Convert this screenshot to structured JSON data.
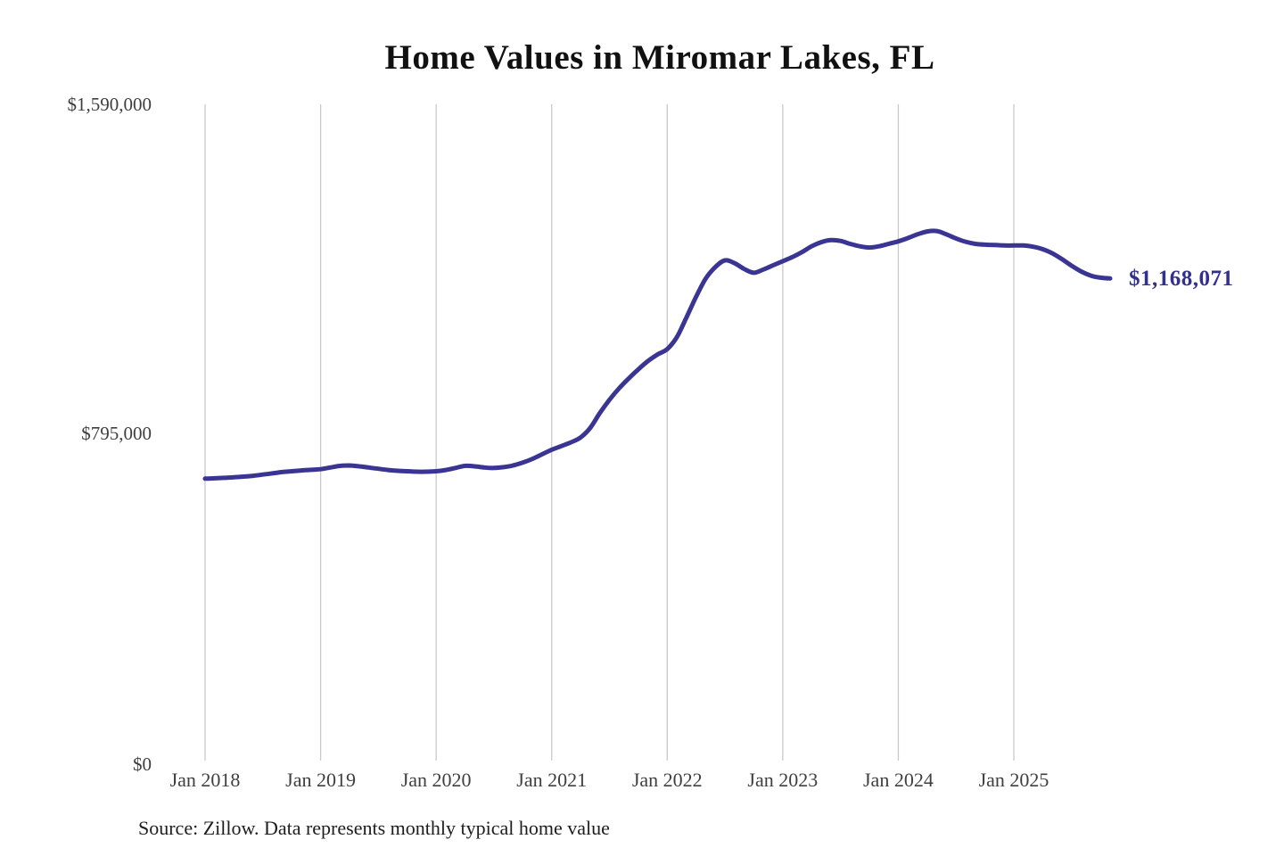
{
  "title": "Home Values in Miromar Lakes, FL",
  "end_label": "$1,168,071",
  "source_note": "Source: Zillow. Data represents monthly typical home value",
  "colors": {
    "line": "#3a3493",
    "end_label": "#33308f",
    "axis_text": "#3f3f3f",
    "gridline": "#c9c9c9",
    "title_text": "#111111",
    "background": "#ffffff"
  },
  "chart_data": {
    "type": "line",
    "title": "Home Values in Miromar Lakes, FL",
    "xlabel": "",
    "ylabel": "",
    "ylim": [
      0,
      1590000
    ],
    "y_tick_labels": [
      "$0",
      "$795,000",
      "$1,590,000"
    ],
    "y_tick_values": [
      0,
      795000,
      1590000
    ],
    "x_tick_labels": [
      "Jan 2018",
      "Jan 2019",
      "Jan 2020",
      "Jan 2021",
      "Jan 2022",
      "Jan 2023",
      "Jan 2024",
      "Jan 2025"
    ],
    "grid": "vertical-only",
    "legend": "none",
    "interval": "monthly",
    "final_value": 1168071,
    "x": [
      "2018-01",
      "2018-02",
      "2018-03",
      "2018-04",
      "2018-05",
      "2018-06",
      "2018-07",
      "2018-08",
      "2018-09",
      "2018-10",
      "2018-11",
      "2018-12",
      "2019-01",
      "2019-02",
      "2019-03",
      "2019-04",
      "2019-05",
      "2019-06",
      "2019-07",
      "2019-08",
      "2019-09",
      "2019-10",
      "2019-11",
      "2019-12",
      "2020-01",
      "2020-02",
      "2020-03",
      "2020-04",
      "2020-05",
      "2020-06",
      "2020-07",
      "2020-08",
      "2020-09",
      "2020-10",
      "2020-11",
      "2020-12",
      "2021-01",
      "2021-02",
      "2021-03",
      "2021-04",
      "2021-05",
      "2021-06",
      "2021-07",
      "2021-08",
      "2021-09",
      "2021-10",
      "2021-11",
      "2021-12",
      "2022-01",
      "2022-02",
      "2022-03",
      "2022-04",
      "2022-05",
      "2022-06",
      "2022-07",
      "2022-08",
      "2022-09",
      "2022-10",
      "2022-11",
      "2022-12",
      "2023-01",
      "2023-02",
      "2023-03",
      "2023-04",
      "2023-05",
      "2023-06",
      "2023-07",
      "2023-08",
      "2023-09",
      "2023-10",
      "2023-11",
      "2023-12",
      "2024-01",
      "2024-02",
      "2024-03",
      "2024-04",
      "2024-05",
      "2024-06",
      "2024-07",
      "2024-08",
      "2024-09",
      "2024-10",
      "2024-11",
      "2024-12",
      "2025-01",
      "2025-02",
      "2025-03",
      "2025-04",
      "2025-05",
      "2025-06",
      "2025-07",
      "2025-08",
      "2025-09",
      "2025-10",
      "2025-11"
    ],
    "series": [
      {
        "name": "Typical home value",
        "values": [
          683000,
          684000,
          685000,
          686500,
          688000,
          690000,
          693000,
          696000,
          699000,
          701000,
          703000,
          704500,
          706000,
          710000,
          714000,
          715000,
          713000,
          710000,
          707000,
          704000,
          702000,
          701000,
          700000,
          700000,
          701000,
          704000,
          709000,
          714000,
          713000,
          710000,
          709000,
          711000,
          715000,
          722000,
          731000,
          742000,
          753000,
          762000,
          771000,
          783000,
          806000,
          842000,
          874000,
          902000,
          926000,
          948000,
          968000,
          984000,
          997000,
          1026000,
          1074000,
          1124000,
          1168000,
          1196000,
          1212000,
          1205000,
          1191000,
          1182000,
          1190000,
          1200000,
          1210000,
          1220000,
          1232000,
          1246000,
          1256000,
          1261000,
          1259000,
          1252000,
          1246000,
          1243000,
          1246000,
          1252000,
          1258000,
          1266000,
          1275000,
          1282000,
          1283000,
          1275000,
          1265000,
          1257000,
          1252000,
          1250000,
          1249000,
          1248000,
          1248000,
          1248000,
          1245000,
          1239000,
          1229000,
          1215000,
          1199000,
          1185000,
          1175000,
          1170000,
          1168071
        ]
      }
    ]
  }
}
